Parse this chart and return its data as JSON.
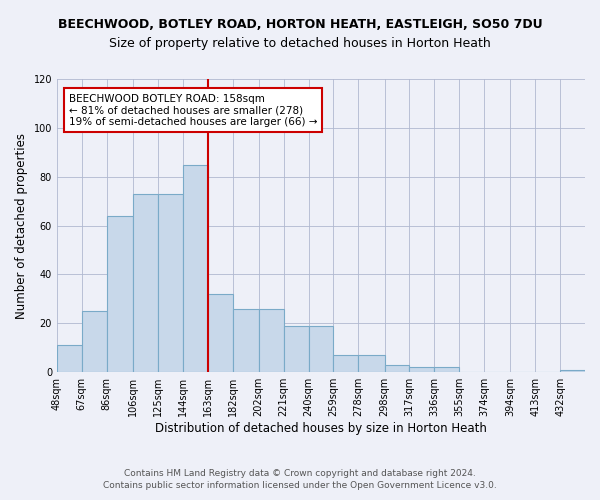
{
  "title": "BEECHWOOD, BOTLEY ROAD, HORTON HEATH, EASTLEIGH, SO50 7DU",
  "subtitle": "Size of property relative to detached houses in Horton Heath",
  "xlabel": "Distribution of detached houses by size in Horton Heath",
  "ylabel": "Number of detached properties",
  "bar_color": "#c8d8ea",
  "bar_edge_color": "#7aaac8",
  "grid_color": "#b0b8d0",
  "background_color": "#eef0f8",
  "bins": [
    48,
    67,
    86,
    106,
    125,
    144,
    163,
    182,
    202,
    221,
    240,
    259,
    278,
    298,
    317,
    336,
    355,
    374,
    394,
    413,
    432
  ],
  "bin_labels": [
    "48sqm",
    "67sqm",
    "86sqm",
    "106sqm",
    "125sqm",
    "144sqm",
    "163sqm",
    "182sqm",
    "202sqm",
    "221sqm",
    "240sqm",
    "259sqm",
    "278sqm",
    "298sqm",
    "317sqm",
    "336sqm",
    "355sqm",
    "374sqm",
    "394sqm",
    "413sqm",
    "432sqm"
  ],
  "bar_heights": [
    11,
    25,
    64,
    73,
    73,
    85,
    32,
    26,
    26,
    19,
    19,
    7,
    7,
    3,
    2,
    2,
    0,
    0,
    0,
    0,
    1
  ],
  "vline_x": 163,
  "vline_color": "#cc0000",
  "annotation_text": "BEECHWOOD BOTLEY ROAD: 158sqm\n← 81% of detached houses are smaller (278)\n19% of semi-detached houses are larger (66) →",
  "annotation_box_color": "white",
  "annotation_box_edge": "#cc0000",
  "ylim": [
    0,
    120
  ],
  "yticks": [
    0,
    20,
    40,
    60,
    80,
    100,
    120
  ],
  "footnote": "Contains HM Land Registry data © Crown copyright and database right 2024.\nContains public sector information licensed under the Open Government Licence v3.0.",
  "title_fontsize": 9,
  "subtitle_fontsize": 9,
  "xlabel_fontsize": 8.5,
  "ylabel_fontsize": 8.5,
  "tick_fontsize": 7,
  "annotation_fontsize": 7.5,
  "footnote_fontsize": 6.5
}
